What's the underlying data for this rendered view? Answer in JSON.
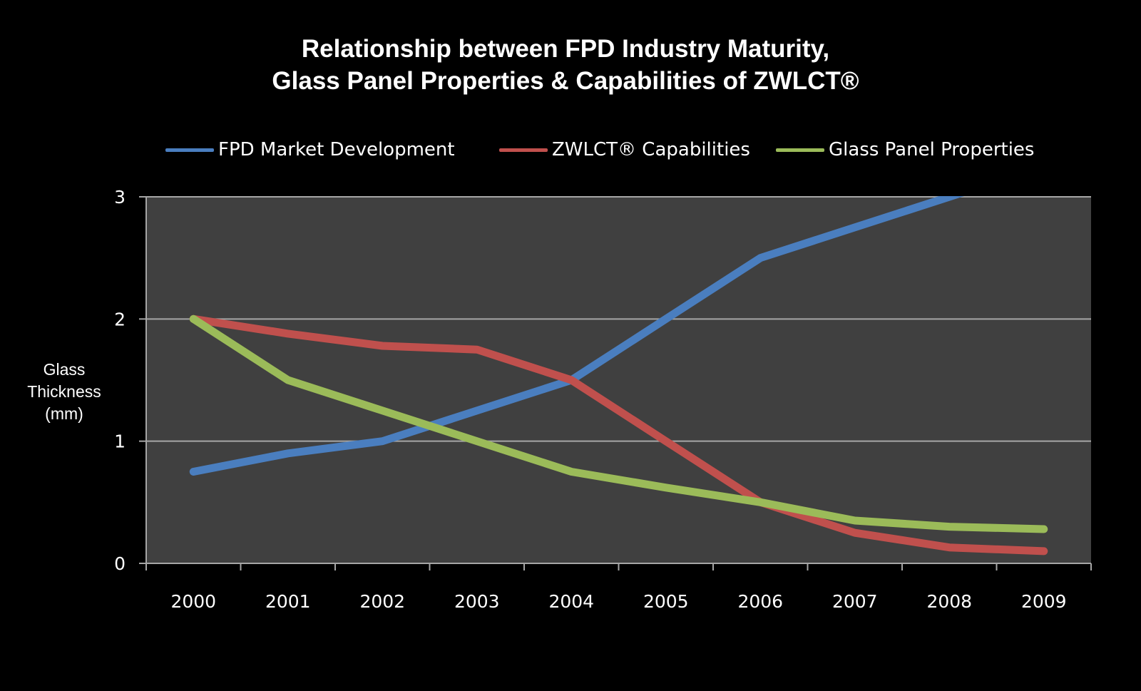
{
  "chart_data": {
    "type": "line",
    "title": [
      "Relationship between FPD Industry Maturity,",
      "Glass Panel Properties & Capabilities of ZWLCT®"
    ],
    "xlabel": "",
    "ylabel": [
      "Glass",
      "Thickness",
      "(mm)"
    ],
    "categories": [
      "2000",
      "2001",
      "2002",
      "2003",
      "2004",
      "2005",
      "2006",
      "2007",
      "2008",
      "2009"
    ],
    "ylim": [
      0,
      3
    ],
    "yticks": [
      "0",
      "1",
      "2",
      "3"
    ],
    "grid": true,
    "legend_position": "top",
    "series": [
      {
        "name": "FPD Market Development",
        "color": "#4a7ebf",
        "values": [
          0.75,
          0.9,
          1.0,
          1.25,
          1.5,
          2.0,
          2.5,
          2.75,
          3.0,
          null
        ]
      },
      {
        "name": "ZWLCT® Capabilities",
        "color": "#c0504d",
        "values": [
          2.0,
          1.88,
          1.78,
          1.75,
          1.5,
          1.0,
          0.5,
          0.25,
          0.13,
          0.1
        ]
      },
      {
        "name": "Glass Panel Properties",
        "color": "#9bbb59",
        "values": [
          2.0,
          1.5,
          1.25,
          1.0,
          0.75,
          0.62,
          0.5,
          0.35,
          0.3,
          0.28
        ]
      }
    ]
  },
  "colors": {
    "background": "#000000",
    "plot_area": "#404040",
    "gridline": "#a6a6a6",
    "text": "#ffffff"
  }
}
